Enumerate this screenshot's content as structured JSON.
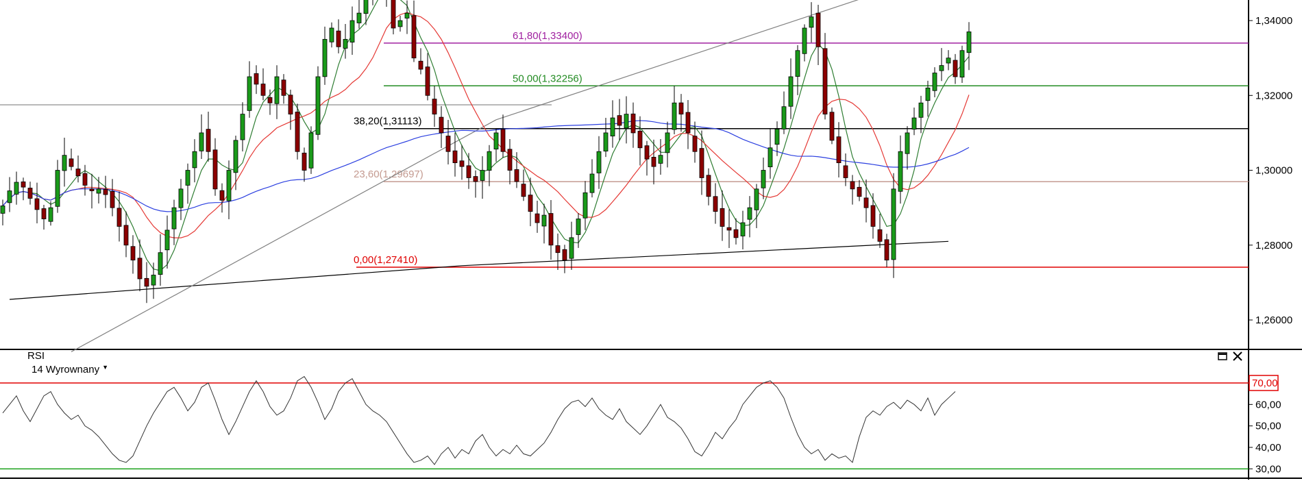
{
  "chart_data": [
    {
      "type": "candlestick",
      "title": "",
      "y_axis": {
        "position": "right",
        "range": [
          1.2525,
          1.3455
        ],
        "ticks": [
          "1,34000",
          "1,32000",
          "1,30000",
          "1,28000",
          "1,26000"
        ],
        "tick_values": [
          1.34,
          1.32,
          1.3,
          1.28,
          1.26
        ]
      },
      "fibonacci_levels": [
        {
          "label": "61,80(1,33400)",
          "value": 1.334,
          "color": "#a020a0"
        },
        {
          "label": "50,00(1,32256)",
          "value": 1.32256,
          "color": "#228b22"
        },
        {
          "label": "38,20(1,31113)",
          "value": 1.31113,
          "color": "#000000"
        },
        {
          "label": "23,60(1,29697)",
          "value": 1.29697,
          "color": "#c49a90"
        },
        {
          "label": "0,00(1,27410)",
          "value": 1.2741,
          "color": "#e00000"
        }
      ],
      "horizontal_reference": {
        "value": 1.3175,
        "color": "#a0a0a0"
      },
      "series": [
        {
          "indicator": "short moving average",
          "color": "#2e7d32"
        },
        {
          "indicator": "medium moving average",
          "color": "#e53935"
        },
        {
          "indicator": "long moving average",
          "color": "#2b3fe0"
        }
      ],
      "trendlines": [
        {
          "from": [
            1,
            1.2655
          ],
          "to": [
            67,
            1.2745
          ],
          "color": "#000000"
        },
        {
          "from": [
            67,
            1.2745
          ],
          "to": [
            138,
            1.281
          ],
          "color": "#000000"
        },
        {
          "from": [
            10,
            1.2515
          ],
          "to": [
            72,
            1.3135
          ],
          "color": "#808080"
        },
        {
          "from": [
            72,
            1.3135
          ],
          "to": [
            128,
            1.3475
          ],
          "color": "#808080"
        }
      ],
      "close_series_note": "approximate closes read from candles, index 0..141",
      "close": [
        1.2905,
        1.2945,
        1.2968,
        1.2955,
        1.2925,
        1.2895,
        1.287,
        1.29,
        1.3,
        1.304,
        1.301,
        1.2985,
        1.296,
        1.2945,
        1.295,
        1.2935,
        1.29,
        1.285,
        1.28,
        1.276,
        1.271,
        1.269,
        1.272,
        1.278,
        1.284,
        1.29,
        1.295,
        1.3,
        1.305,
        1.31,
        1.305,
        1.295,
        1.292,
        1.3,
        1.308,
        1.315,
        1.325,
        1.323,
        1.32,
        1.318,
        1.325,
        1.32,
        1.315,
        1.305,
        1.3,
        1.31,
        1.325,
        1.335,
        1.338,
        1.333,
        1.335,
        1.34,
        1.342,
        1.348,
        1.35,
        1.352,
        1.348,
        1.338,
        1.34,
        1.342,
        1.33,
        1.327,
        1.32,
        1.315,
        1.31,
        1.305,
        1.302,
        1.301,
        1.298,
        1.297,
        1.3,
        1.305,
        1.31,
        1.305,
        1.3,
        1.297,
        1.293,
        1.289,
        1.286,
        1.288,
        1.28,
        1.278,
        1.276,
        1.282,
        1.287,
        1.294,
        1.299,
        1.305,
        1.31,
        1.314,
        1.312,
        1.315,
        1.31,
        1.306,
        1.303,
        1.301,
        1.304,
        1.31,
        1.318,
        1.315,
        1.31,
        1.305,
        1.298,
        1.293,
        1.289,
        1.285,
        1.284,
        1.282,
        1.286,
        1.29,
        1.295,
        1.3,
        1.306,
        1.311,
        1.317,
        1.325,
        1.332,
        1.338,
        1.341,
        1.333,
        1.315,
        1.308,
        1.302,
        1.298,
        1.295,
        1.293,
        1.29,
        1.285,
        1.281,
        1.276,
        1.295,
        1.305,
        1.31,
        1.314,
        1.318,
        1.322,
        1.326,
        1.328,
        1.33,
        1.325,
        1.332,
        1.337
      ]
    },
    {
      "type": "line",
      "indicator": "RSI",
      "parameter": "14 Wyrownany",
      "y_axis": {
        "position": "right",
        "range": [
          25,
          85
        ],
        "ticks": [
          "60,00",
          "50,00",
          "40,00",
          "30,00"
        ],
        "tick_values": [
          60,
          50,
          40,
          30
        ]
      },
      "levels": [
        {
          "label": "70,00",
          "value": 70,
          "color": "#e00000"
        },
        {
          "value": 30,
          "color": "#18a018"
        }
      ],
      "values": [
        56,
        60,
        64,
        57,
        52,
        58,
        64,
        66,
        60,
        56,
        53,
        55,
        50,
        48,
        45,
        41,
        37,
        34,
        33,
        36,
        43,
        50,
        56,
        61,
        66,
        68,
        63,
        57,
        61,
        68,
        70,
        62,
        53,
        46,
        52,
        59,
        66,
        71,
        66,
        59,
        55,
        57,
        63,
        71,
        73,
        68,
        61,
        53,
        58,
        66,
        70,
        72,
        66,
        60,
        57,
        55,
        52,
        47,
        42,
        37,
        33,
        34,
        36,
        32,
        37,
        40,
        35,
        39,
        37,
        43,
        46,
        40,
        36,
        39,
        37,
        41,
        37,
        36,
        39,
        42,
        47,
        53,
        58,
        61,
        62,
        59,
        63,
        58,
        55,
        53,
        58,
        52,
        49,
        46,
        50,
        55,
        60,
        54,
        52,
        49,
        44,
        38,
        36,
        41,
        47,
        44,
        49,
        53,
        60,
        64,
        68,
        70,
        71,
        68,
        63,
        54,
        46,
        40,
        37,
        39,
        34,
        37,
        35,
        36,
        33,
        45,
        54,
        57,
        55,
        59,
        61,
        58,
        62,
        60,
        57,
        63,
        55,
        60,
        63,
        66
      ]
    }
  ]
}
